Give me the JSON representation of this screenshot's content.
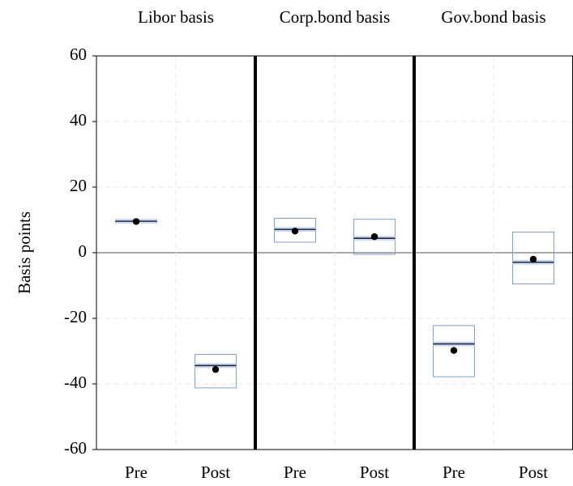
{
  "chart_data": {
    "type": "box",
    "y_label": "Basis points",
    "ylim": [
      -60,
      60
    ],
    "yticks": [
      -60,
      -40,
      -20,
      0,
      20,
      40,
      60
    ],
    "grid": true,
    "box_color": "#7f9fd4",
    "median_color": "#1f2a44",
    "mean_color": "#000000",
    "panels": [
      {
        "title": "Libor basis",
        "categories": [
          "Pre",
          "Post"
        ],
        "q3": [
          10.1,
          -31.0
        ],
        "median": [
          9.6,
          -34.4
        ],
        "q1": [
          9.1,
          -41.2
        ],
        "mean": [
          9.5,
          -35.6
        ]
      },
      {
        "title": "Corp.bond basis",
        "categories": [
          "Pre",
          "Post"
        ],
        "q3": [
          10.5,
          10.2
        ],
        "median": [
          7.1,
          4.4
        ],
        "q1": [
          3.2,
          -0.5
        ],
        "mean": [
          6.6,
          4.9
        ]
      },
      {
        "title": "Gov.bond basis",
        "categories": [
          "Pre",
          "Post"
        ],
        "q3": [
          -22.2,
          6.3
        ],
        "median": [
          -27.8,
          -2.9
        ],
        "q1": [
          -37.8,
          -9.5
        ],
        "mean": [
          -29.8,
          -2.0
        ]
      }
    ]
  }
}
